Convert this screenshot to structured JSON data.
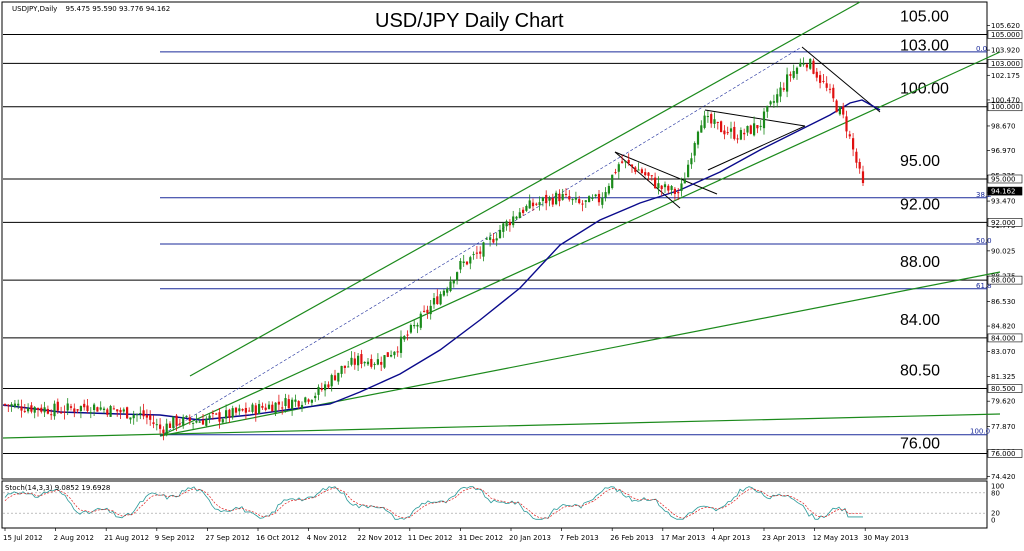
{
  "header": {
    "symbol": "USDJPY,Daily",
    "ohlc": "95.475 95.590 93.776 94.162"
  },
  "indicator_header": {
    "text": "Stoch(14,3,3) 9.0852 19.6928"
  },
  "colors": {
    "channel": "#1c8a1c",
    "fib": "#1a2a9a",
    "level": "#000000",
    "ma": "#0a0a8c",
    "bull": "#1a8a1a",
    "bear": "#e01010",
    "stoch_main": "#2a9a9a",
    "stoch_signal": "#e02020",
    "last_price_bg": "#000000"
  },
  "chart_data": {
    "type": "candlestick",
    "title": "USD/JPY Daily Chart",
    "x_ticks": [
      "15 Jul 2012",
      "2 Aug 2012",
      "21 Aug 2012",
      "9 Sep 2012",
      "27 Sep 2012",
      "16 Oct 2012",
      "4 Nov 2012",
      "22 Nov 2012",
      "11 Dec 2012",
      "31 Dec 2012",
      "20 Jan 2013",
      "7 Feb 2013",
      "26 Feb 2013",
      "17 Mar 2013",
      "4 Apr 2013",
      "23 Apr 2013",
      "12 May 2013",
      "30 May 2013"
    ],
    "y_ticks": [
      "105.620",
      "103.920",
      "102.175",
      "100.470",
      "98.670",
      "96.970",
      "95.225",
      "93.470",
      "91.775",
      "90.025",
      "88.275",
      "86.530",
      "84.820",
      "83.070",
      "81.325",
      "79.620",
      "77.870",
      "76.130",
      "74.420"
    ],
    "ylim": [
      73.3,
      106.4
    ],
    "price_tags": [
      "105.000",
      "103.000",
      "100.000",
      "95.000",
      "94.162",
      "92.000",
      "88.000",
      "84.000",
      "80.500",
      "76.000"
    ],
    "last_price": "94.162",
    "horizontal_levels": [
      {
        "value": 105.0,
        "label": "105.00"
      },
      {
        "value": 103.0,
        "label": "103.00"
      },
      {
        "value": 100.0,
        "label": "100.00"
      },
      {
        "value": 95.0,
        "label": "95.00"
      },
      {
        "value": 92.0,
        "label": "92.00"
      },
      {
        "value": 88.0,
        "label": "88.00"
      },
      {
        "value": 84.0,
        "label": "84.00"
      },
      {
        "value": 80.5,
        "label": "80.50"
      },
      {
        "value": 76.0,
        "label": "76.00"
      }
    ],
    "fibonacci": [
      {
        "value": 103.8,
        "label": "0.0"
      },
      {
        "value": 93.7,
        "label": "38.2"
      },
      {
        "value": 90.5,
        "label": "50.0"
      },
      {
        "value": 87.4,
        "label": "61.8"
      },
      {
        "value": 77.3,
        "label": "100.0"
      }
    ],
    "ohlc": {
      "open": 95.475,
      "high": 95.59,
      "low": 93.776,
      "close": 94.162
    },
    "stochastic": {
      "name": "Stoch(14,3,3)",
      "main": 9.0852,
      "signal": 19.6928,
      "ticks": [
        "100",
        "80",
        "20",
        "0"
      ]
    }
  }
}
